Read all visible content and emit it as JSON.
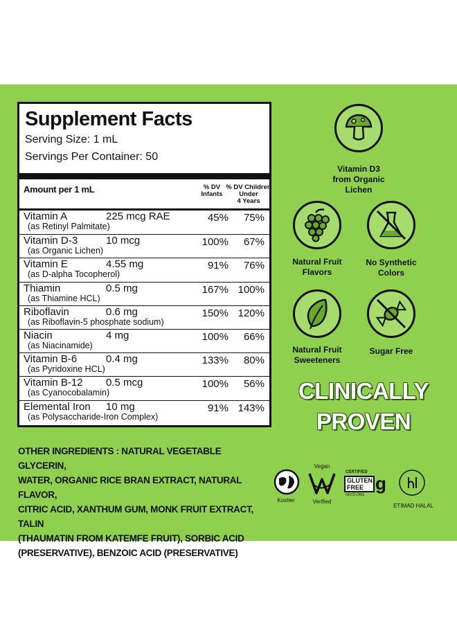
{
  "facts": {
    "title": "Supplement Facts",
    "serving_size": "Serving Size: 1 mL",
    "servings_per_container": "Servings Per Container: 50",
    "amount_header": "Amount per 1 mL",
    "col1_header": [
      "% DV",
      "Infants"
    ],
    "col2_header": [
      "% DV Children",
      "Under",
      "4 Years"
    ],
    "rows": [
      {
        "name": "Vitamin A",
        "amount": "225 mcg RAE",
        "sub": "(as Retinyl Palmitate)",
        "dv_infants": "45%",
        "dv_children": "75%"
      },
      {
        "name": "Vitamin D-3",
        "amount": "10 mcg",
        "sub": "(as Organic Lichen)",
        "dv_infants": "100%",
        "dv_children": "67%"
      },
      {
        "name": "Vitamin E",
        "amount": "4.55 mg",
        "sub": "(as D-alpha Tocopherol)",
        "dv_infants": "91%",
        "dv_children": "76%"
      },
      {
        "name": "Thiamin",
        "amount": "0.5 mg",
        "sub": "(as Thiamine HCL)",
        "dv_infants": "167%",
        "dv_children": "100%"
      },
      {
        "name": "Riboflavin",
        "amount": "0.6 mg",
        "sub": "(as Riboflavin-5 phosphate sodium)",
        "dv_infants": "150%",
        "dv_children": "120%"
      },
      {
        "name": "Niacin",
        "amount": "4 mg",
        "sub": "(as Niacinamide)",
        "dv_infants": "100%",
        "dv_children": "66%"
      },
      {
        "name": "Vitamin B-6",
        "amount": "0.4 mg",
        "sub": "(as Pyridoxine HCL)",
        "dv_infants": "133%",
        "dv_children": "80%"
      },
      {
        "name": "Vitamin B-12",
        "amount": "0.5 mcg",
        "sub": "(as Cyanocobalamin)",
        "dv_infants": "100%",
        "dv_children": "56%"
      },
      {
        "name": "Elemental Iron",
        "amount": "10 mg",
        "sub": "(as Polysaccharide-Iron Complex)",
        "dv_infants": "91%",
        "dv_children": "143%"
      }
    ]
  },
  "badges": {
    "vitamin_d3": [
      "Vitamin D3",
      "from Organic",
      "Lichen"
    ],
    "fruit_flavors": [
      "Natural Fruit",
      "Flavors"
    ],
    "no_synthetic": [
      "No Synthetic",
      "Colors"
    ],
    "fruit_sweeteners": [
      "Natural Fruit",
      "Sweeteners"
    ],
    "sugar_free": [
      "Sugar Free"
    ]
  },
  "claim": [
    "CLINICALLY",
    "PROVEN"
  ],
  "ingredients": [
    "OTHER INGREDIENTS : NATURAL VEGETABLE GLYCERIN,",
    "WATER, ORGANIC RICE BRAN EXTRACT, NATURAL FLAVOR,",
    "CITRIC ACID, XANTHUM GUM, MONK FRUIT EXTRACT, TALIN",
    "(THAUMATIN FROM KATEMFE FRUIT), SORBIC ACID",
    "(PRESERVATIVE), BENZOIC ACID (PRESERVATIVE)"
  ],
  "certifications": {
    "kosher": "Kosher",
    "vegan_top": "Vegan",
    "vegan_bottom": "Verified",
    "gf_certified": "CERTIFIED",
    "gf_gluten": "GLUTEN",
    "gf_free": "FREE",
    "gf_url": "GFCO.ORG",
    "halal": "ETIMAD HALAL"
  },
  "colors": {
    "panel_green": "#8fd14f",
    "badge_green": "#a5dc6d",
    "icon_green": "#6aa82f"
  }
}
